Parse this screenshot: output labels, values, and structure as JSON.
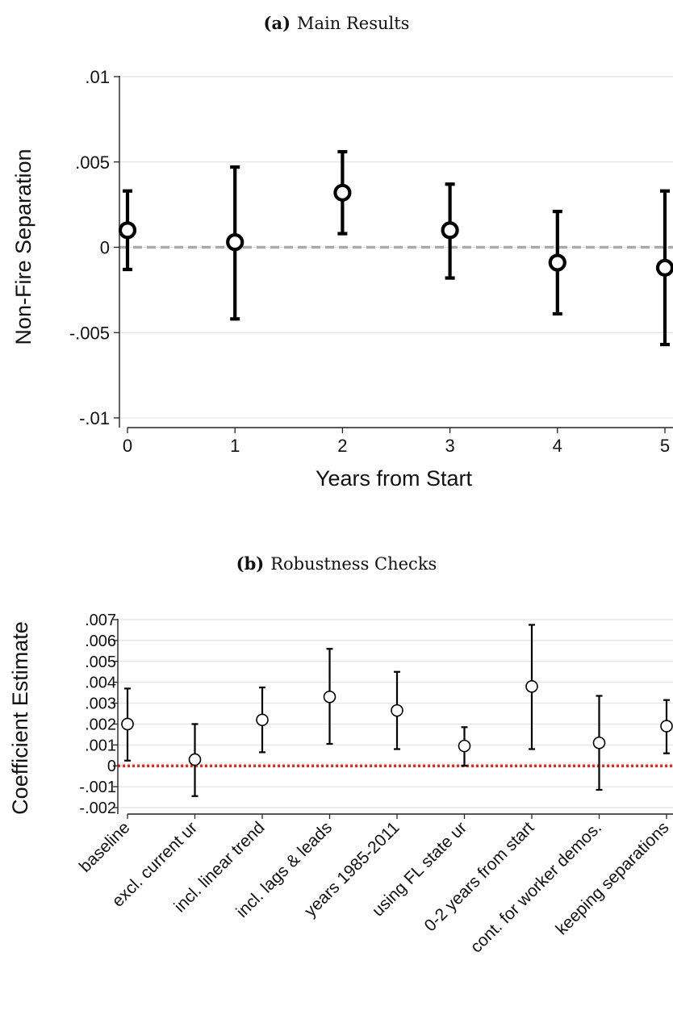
{
  "figure": {
    "panel_a_label": "(a)",
    "panel_a_title": "Main Results",
    "panel_b_label": "(b)",
    "panel_b_title": "Robustness Checks"
  },
  "chart_data": [
    {
      "type": "scatter",
      "title": "Main Results",
      "xlabel": "Years from Start",
      "ylabel": "Non-Fire Separation",
      "ylim": [
        -0.01,
        0.01
      ],
      "xlim": [
        0,
        5
      ],
      "y_ticks": [
        ".01",
        ".005",
        "0",
        "-.005",
        "-.01"
      ],
      "x_ticks": [
        "0",
        "1",
        "2",
        "3",
        "4",
        "5"
      ],
      "grid": true,
      "reference_line": {
        "y": 0,
        "style": "dashed",
        "color": "#aaaaaa"
      },
      "points": [
        {
          "x": 0,
          "y": 0.001,
          "ci_low": -0.0013,
          "ci_high": 0.0033
        },
        {
          "x": 1,
          "y": 0.0003,
          "ci_low": -0.0042,
          "ci_high": 0.0047
        },
        {
          "x": 2,
          "y": 0.0032,
          "ci_low": 0.0008,
          "ci_high": 0.0056
        },
        {
          "x": 3,
          "y": 0.001,
          "ci_low": -0.0018,
          "ci_high": 0.0037
        },
        {
          "x": 4,
          "y": -0.0009,
          "ci_low": -0.0039,
          "ci_high": 0.0021
        },
        {
          "x": 5,
          "y": -0.0012,
          "ci_low": -0.0057,
          "ci_high": 0.0033
        }
      ]
    },
    {
      "type": "scatter",
      "title": "Robustness Checks",
      "xlabel": "",
      "ylabel": "Coefficient Estimate",
      "ylim": [
        -0.002,
        0.007
      ],
      "y_ticks": [
        ".007",
        ".006",
        ".005",
        ".004",
        ".003",
        ".002",
        ".001",
        "0",
        "-.001",
        "-.002"
      ],
      "grid": true,
      "reference_line": {
        "y": 0,
        "style": "dotted",
        "color": "#ee2a24"
      },
      "categories": [
        "baseline",
        "excl. current ur",
        "incl. linear trend",
        "incl. lags & leads",
        "years 1985-2011",
        "using FL state ur",
        "0-2 years from start",
        "cont. for worker demos.",
        "keeping separations"
      ],
      "points": [
        {
          "y": 0.002,
          "ci_low": 0.00025,
          "ci_high": 0.0037
        },
        {
          "y": 0.0003,
          "ci_low": -0.00145,
          "ci_high": 0.002
        },
        {
          "y": 0.0022,
          "ci_low": 0.00065,
          "ci_high": 0.00375
        },
        {
          "y": 0.0033,
          "ci_low": 0.00105,
          "ci_high": 0.0056
        },
        {
          "y": 0.00265,
          "ci_low": 0.0008,
          "ci_high": 0.0045
        },
        {
          "y": 0.00095,
          "ci_low": 0.0,
          "ci_high": 0.00185
        },
        {
          "y": 0.0038,
          "ci_low": 0.0008,
          "ci_high": 0.00675
        },
        {
          "y": 0.0011,
          "ci_low": -0.00115,
          "ci_high": 0.00335
        },
        {
          "y": 0.0019,
          "ci_low": 0.0006,
          "ci_high": 0.00315
        }
      ]
    }
  ]
}
